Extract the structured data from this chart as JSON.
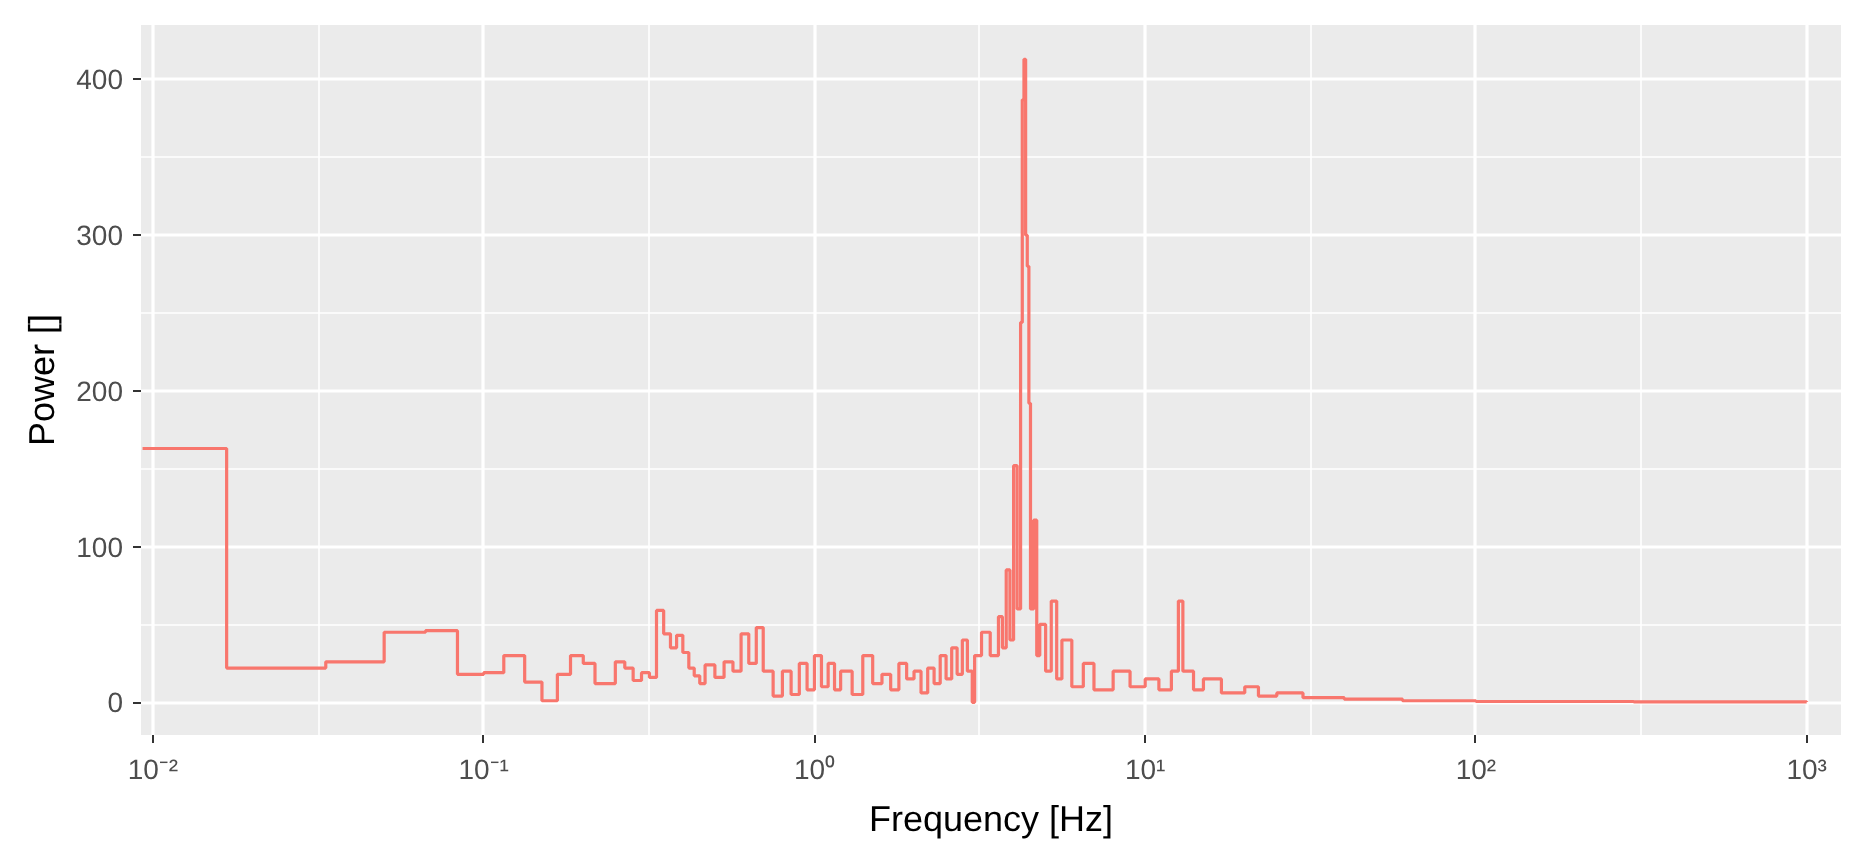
{
  "chart_data": {
    "type": "step",
    "xlabel": "Frequency [Hz]",
    "ylabel": "Power []",
    "log": "x",
    "grid": true,
    "xlim": [
      0.0092,
      1270
    ],
    "ylim": [
      -21,
      435
    ],
    "xticks": [
      {
        "value": 0.01,
        "label": "10⁻²"
      },
      {
        "value": 0.1,
        "label": "10⁻¹"
      },
      {
        "value": 1,
        "label": "10⁰"
      },
      {
        "value": 10,
        "label": "10¹"
      },
      {
        "value": 100,
        "label": "10²"
      },
      {
        "value": 1000,
        "label": "10³"
      }
    ],
    "yticks": [
      0,
      100,
      200,
      300,
      400
    ],
    "series": [
      {
        "color": "#f8766d",
        "x": [
          0.0093,
          0.0167,
          0.0333,
          0.05,
          0.0667,
          0.0833,
          0.1,
          0.115,
          0.133,
          0.15,
          0.167,
          0.183,
          0.2,
          0.217,
          0.25,
          0.267,
          0.283,
          0.3,
          0.317,
          0.333,
          0.35,
          0.367,
          0.383,
          0.4,
          0.417,
          0.433,
          0.45,
          0.467,
          0.5,
          0.533,
          0.567,
          0.6,
          0.633,
          0.667,
          0.7,
          0.75,
          0.8,
          0.85,
          0.9,
          0.95,
          1.0,
          1.05,
          1.1,
          1.15,
          1.2,
          1.3,
          1.4,
          1.5,
          1.6,
          1.7,
          1.8,
          1.9,
          2.0,
          2.1,
          2.2,
          2.3,
          2.4,
          2.5,
          2.6,
          2.7,
          2.8,
          2.9,
          3.0,
          3.05,
          3.2,
          3.4,
          3.6,
          3.7,
          3.8,
          3.9,
          4.0,
          4.1,
          4.2,
          4.25,
          4.3,
          4.35,
          4.4,
          4.45,
          4.5,
          4.6,
          4.7,
          4.8,
          5.0,
          5.2,
          5.4,
          5.6,
          6.0,
          6.5,
          7,
          8,
          9,
          10,
          11,
          12,
          12.6,
          13,
          14,
          15,
          17,
          20,
          22,
          25,
          30,
          40,
          60,
          100,
          300,
          1000
        ],
        "values": [
          163,
          22,
          26,
          45,
          46,
          18,
          19,
          30,
          13,
          1,
          18,
          30,
          25,
          12,
          26,
          22,
          14,
          19,
          16,
          59,
          44,
          35,
          43,
          32,
          22,
          17,
          12,
          24,
          16,
          26,
          20,
          44,
          25,
          48,
          20,
          4,
          20,
          5,
          25,
          8,
          30,
          10,
          25,
          8,
          20,
          5,
          30,
          12,
          18,
          8,
          25,
          15,
          20,
          6,
          22,
          12,
          30,
          15,
          35,
          18,
          40,
          20,
          0,
          30,
          45,
          30,
          55,
          35,
          85,
          40,
          152,
          60,
          244,
          387,
          413,
          300,
          280,
          192,
          60,
          117,
          30,
          50,
          20,
          65,
          15,
          40,
          10,
          25,
          8,
          20,
          10,
          15,
          8,
          20,
          65,
          20,
          8,
          15,
          6,
          10,
          4,
          6,
          3,
          2,
          1,
          0.5,
          0.3,
          0.2
        ]
      }
    ]
  }
}
